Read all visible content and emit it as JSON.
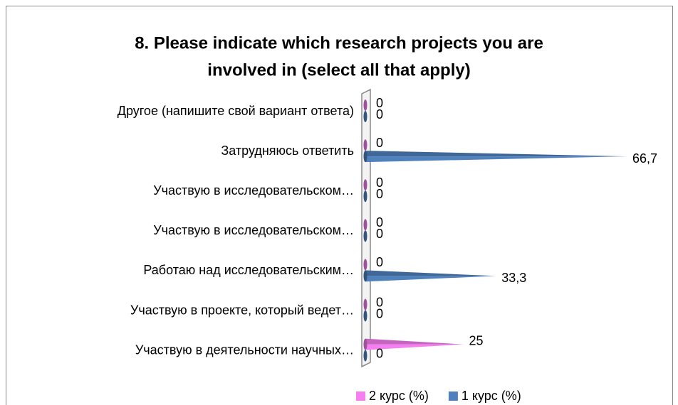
{
  "chart_data": {
    "type": "bar",
    "orientation": "horizontal",
    "title_lines": [
      "8. Please indicate which research projects you are",
      "involved in (select all that apply)"
    ],
    "categories": [
      "Другое (напишите свой вариант ответа)",
      "Затрудняюсь ответить",
      "Участвую в исследовательском…",
      "Участвую в исследовательском…",
      "Работаю над исследовательским…",
      "Участвую в проекте, который ведет…",
      "Участвую в деятельности научных…"
    ],
    "series": [
      {
        "name": "2 курс (%)",
        "color": "#f57ef0",
        "values": [
          0,
          0,
          0,
          0,
          0,
          0,
          25
        ]
      },
      {
        "name": "1 курс (%)",
        "color": "#4f81bd",
        "values": [
          0,
          66.7,
          0,
          0,
          33.3,
          0,
          0
        ],
        "value_labels": [
          "0",
          "66,7",
          "0",
          "0",
          "33,3",
          "0",
          "0"
        ]
      }
    ],
    "legend": "bottom"
  }
}
